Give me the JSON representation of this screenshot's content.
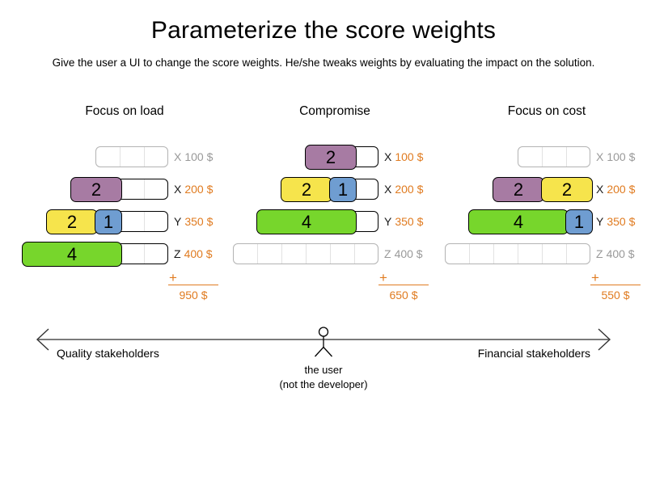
{
  "title": "Parameterize the score weights",
  "subtitle": "Give the user a UI to change the score weights. He/she tweaks weights by evaluating the impact on the solution.",
  "colors": {
    "purple": "#a77ba3",
    "yellow": "#f6e44c",
    "blue": "#6f9dd1",
    "green": "#77d62c",
    "orange": "#e07b20",
    "inactive_gray": "#999999"
  },
  "panels": [
    {
      "title": "Focus on load",
      "rows": [
        {
          "unit": "X",
          "price": "100 $",
          "capacity": 3,
          "active": false,
          "segments": []
        },
        {
          "unit": "X",
          "price": "200 $",
          "capacity": 4,
          "active": true,
          "segments": [
            {
              "value": "2",
              "color": "purple"
            }
          ]
        },
        {
          "unit": "Y",
          "price": "350 $",
          "capacity": 5,
          "active": true,
          "segments": [
            {
              "value": "2",
              "color": "yellow"
            },
            {
              "value": "1",
              "color": "blue"
            }
          ]
        },
        {
          "unit": "Z",
          "price": "400 $",
          "capacity": 6,
          "active": true,
          "segments": [
            {
              "value": "4",
              "color": "green"
            }
          ]
        }
      ],
      "plus_sign": "+",
      "total": "950 $"
    },
    {
      "title": "Compromise",
      "rows": [
        {
          "unit": "X",
          "price": "100 $",
          "capacity": 3,
          "active": true,
          "segments": [
            {
              "value": "2",
              "color": "purple"
            }
          ]
        },
        {
          "unit": "X",
          "price": "200 $",
          "capacity": 4,
          "active": true,
          "segments": [
            {
              "value": "2",
              "color": "yellow"
            },
            {
              "value": "1",
              "color": "blue"
            }
          ]
        },
        {
          "unit": "Y",
          "price": "350 $",
          "capacity": 5,
          "active": true,
          "segments": [
            {
              "value": "4",
              "color": "green"
            }
          ]
        },
        {
          "unit": "Z",
          "price": "400 $",
          "capacity": 6,
          "active": false,
          "segments": []
        }
      ],
      "plus_sign": "+",
      "total": "650 $"
    },
    {
      "title": "Focus on cost",
      "rows": [
        {
          "unit": "X",
          "price": "100 $",
          "capacity": 3,
          "active": false,
          "segments": []
        },
        {
          "unit": "X",
          "price": "200 $",
          "capacity": 4,
          "active": true,
          "segments": [
            {
              "value": "2",
              "color": "purple"
            },
            {
              "value": "2",
              "color": "yellow"
            }
          ]
        },
        {
          "unit": "Y",
          "price": "350 $",
          "capacity": 5,
          "active": true,
          "segments": [
            {
              "value": "4",
              "color": "green"
            },
            {
              "value": "1",
              "color": "blue"
            }
          ]
        },
        {
          "unit": "Z",
          "price": "400 $",
          "capacity": 6,
          "active": false,
          "segments": []
        }
      ],
      "plus_sign": "+",
      "total": "550 $"
    }
  ],
  "axis": {
    "left_label": "Quality stakeholders",
    "right_label": "Financial stakeholders",
    "user_caption_line1": "the user",
    "user_caption_line2": "(not the developer)"
  }
}
